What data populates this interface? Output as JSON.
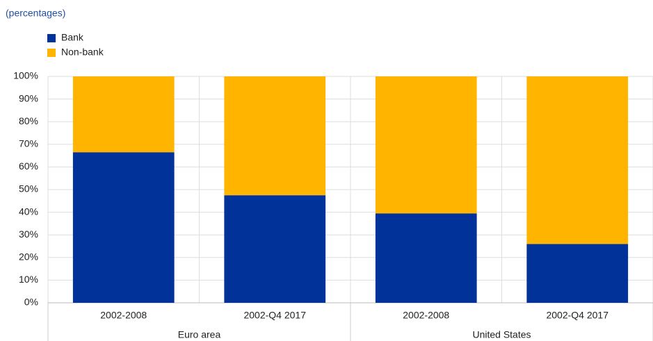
{
  "chart_data": {
    "type": "stacked-bar",
    "subtitle": "(percentages)",
    "categories": [
      "2002-2008",
      "2002-Q4 2017",
      "2002-2008",
      "2002-Q4 2017"
    ],
    "groups": [
      "Euro area",
      "United States"
    ],
    "series": [
      {
        "name": "Bank",
        "color": "#003299",
        "values": [
          66.5,
          47.5,
          39.5,
          26
        ]
      },
      {
        "name": "Non-bank",
        "color": "#ffb400",
        "values": [
          33.5,
          52.5,
          60.5,
          74
        ]
      }
    ],
    "ylim": [
      0,
      100
    ],
    "yticks": [
      {
        "value": 0,
        "label": "0%"
      },
      {
        "value": 10,
        "label": "10%"
      },
      {
        "value": 20,
        "label": "20%"
      },
      {
        "value": 30,
        "label": "30%"
      },
      {
        "value": 40,
        "label": "40%"
      },
      {
        "value": 50,
        "label": "50%"
      },
      {
        "value": 60,
        "label": "60%"
      },
      {
        "value": 70,
        "label": "70%"
      },
      {
        "value": 80,
        "label": "80%"
      },
      {
        "value": 90,
        "label": "90%"
      },
      {
        "value": 100,
        "label": "100%"
      }
    ],
    "grid": true
  }
}
